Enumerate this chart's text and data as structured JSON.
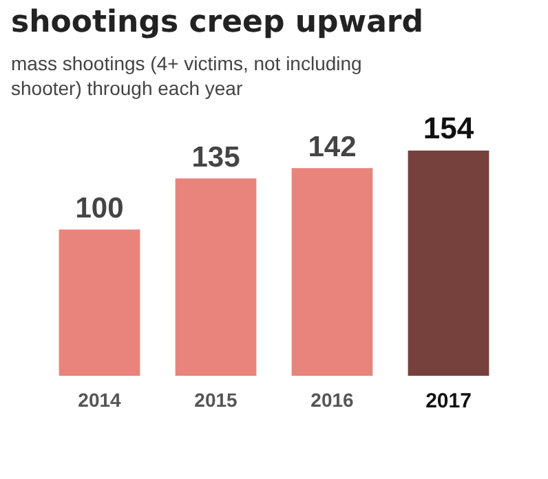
{
  "chart_data": {
    "type": "bar",
    "title": "shootings creep upward",
    "subtitle": "mass shootings (4+ victims, not including shooter) through each year",
    "categories": [
      "2014",
      "2015",
      "2016",
      "2017"
    ],
    "values": [
      100,
      135,
      142,
      154
    ],
    "colors": [
      "#e8847c",
      "#e8847c",
      "#e8847c",
      "#76403d"
    ],
    "data_labels": true,
    "grid": false,
    "legend": false,
    "tick_labels": "x"
  }
}
